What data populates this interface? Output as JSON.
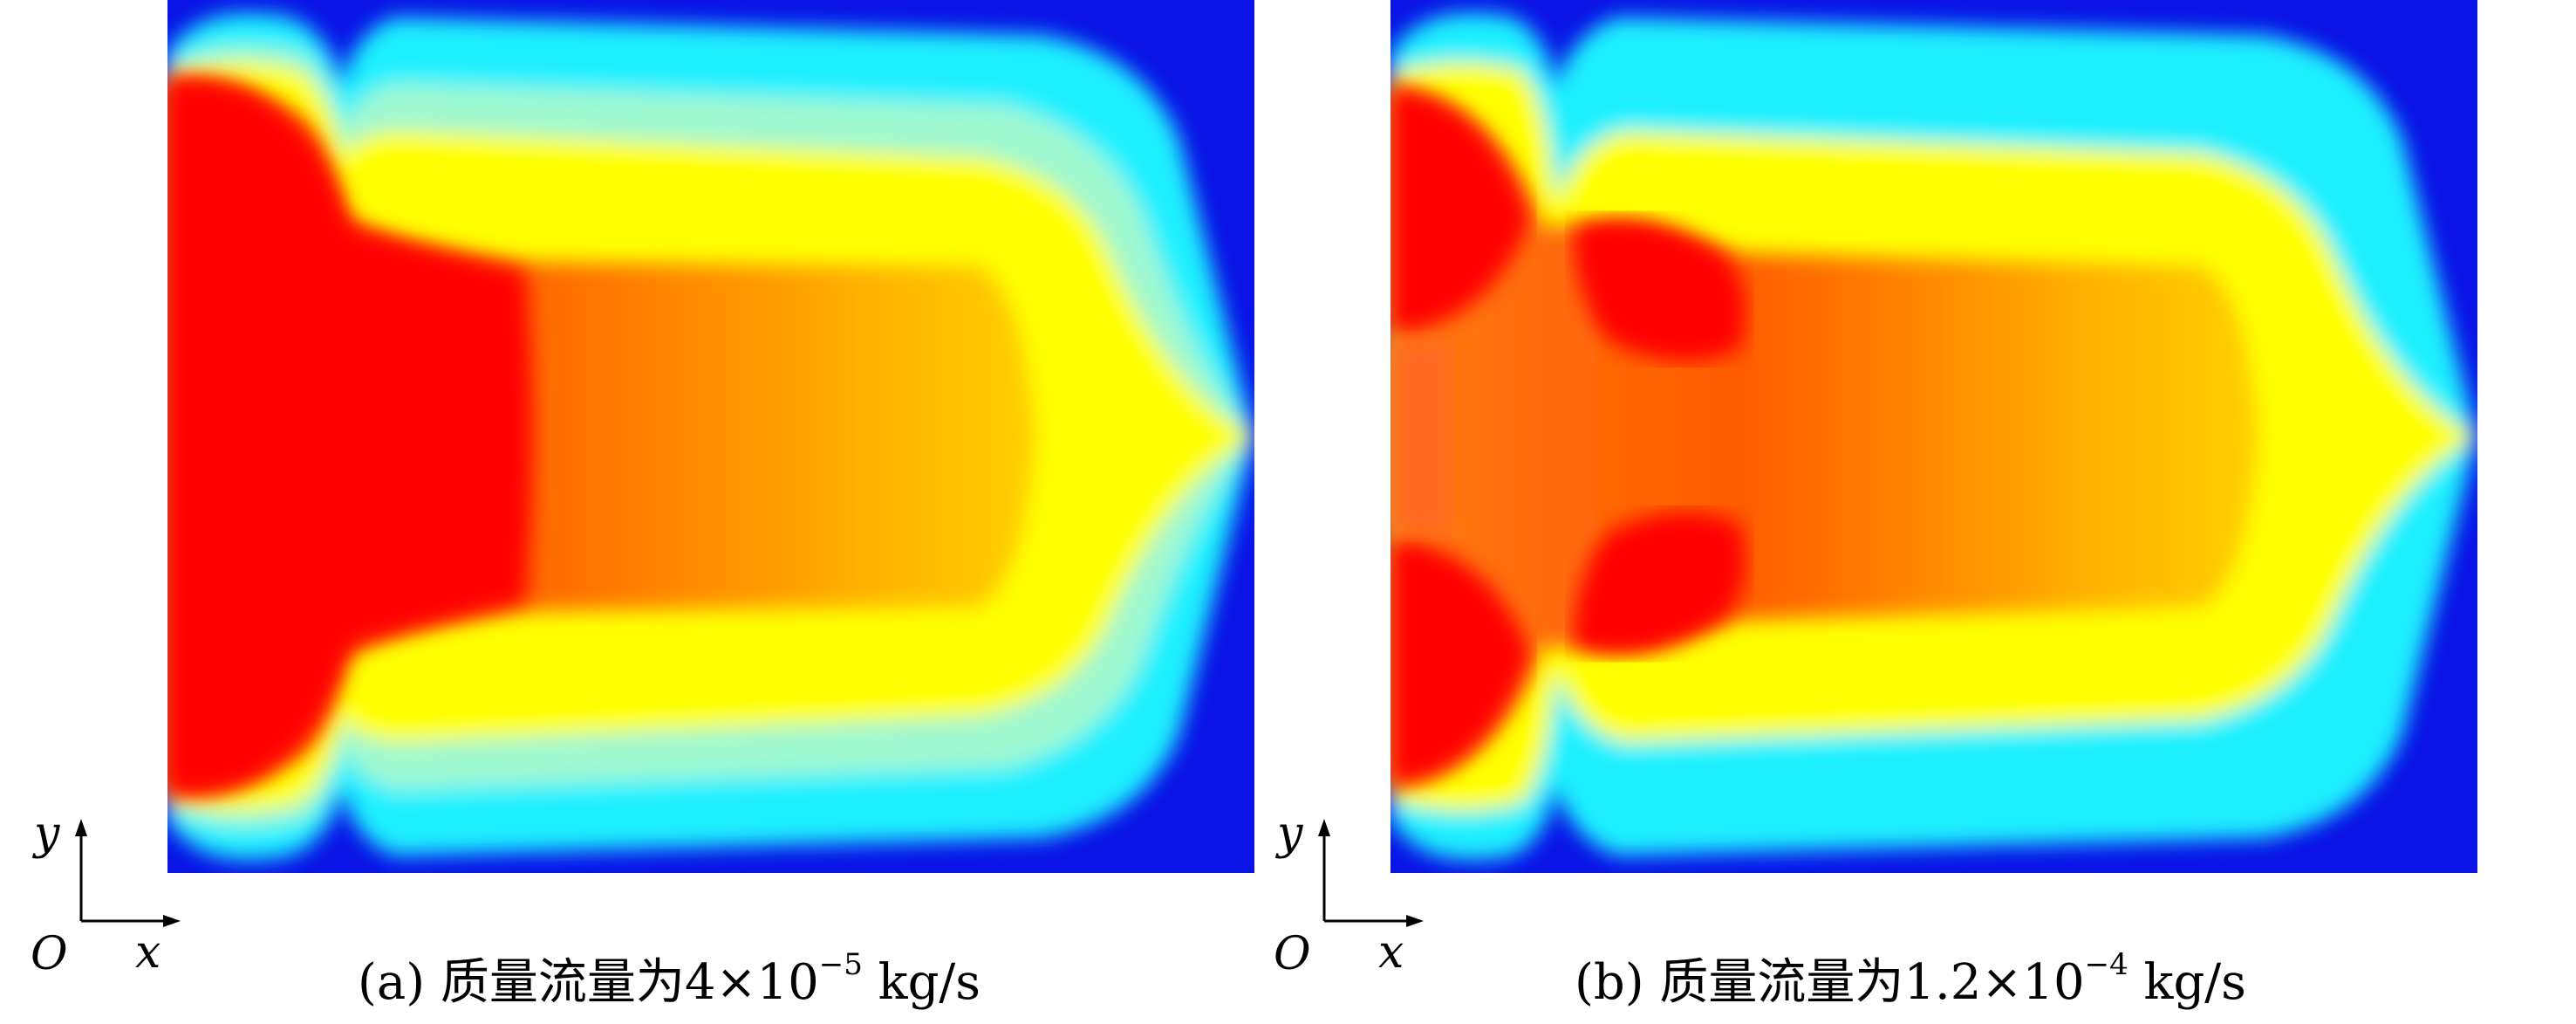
{
  "panels": [
    {
      "id": "a",
      "caption": {
        "prefix": "(a) 质量流量为",
        "mantissa": "4",
        "times": "×",
        "base": "10",
        "exponent": "−5",
        "unit": " kg/s"
      },
      "axis": {
        "y_label": "y",
        "x_label": "x",
        "origin_label": "O"
      }
    },
    {
      "id": "b",
      "caption": {
        "prefix": "(b) 质量流量为",
        "mantissa": "1.2",
        "times": "×",
        "base": "10",
        "exponent": "−4",
        "unit": " kg/s"
      },
      "axis": {
        "y_label": "y",
        "x_label": "x",
        "origin_label": "O"
      }
    }
  ],
  "colormap": {
    "blue": "#0a14e6",
    "cyan": "#1ff0ff",
    "yellow": "#ffff00",
    "orange": "#ff8a00",
    "red": "#ff0000"
  }
}
